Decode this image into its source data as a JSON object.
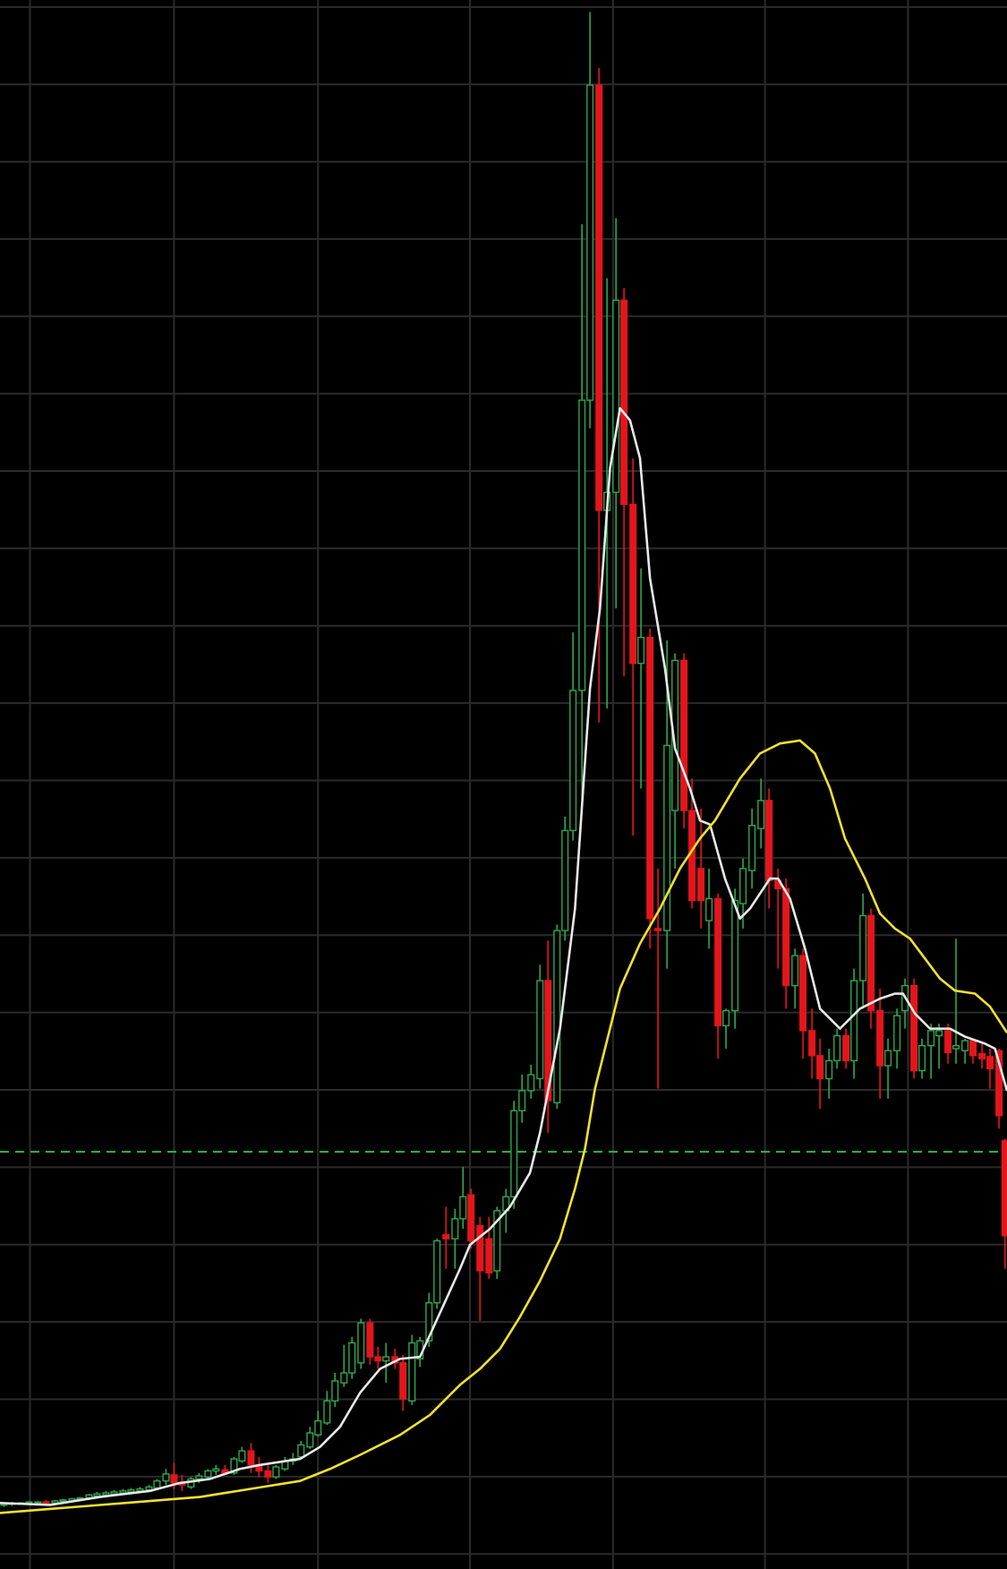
{
  "chart_data": {
    "type": "candlestick",
    "x": [
      4,
      12,
      21,
      29,
      38,
      46,
      55,
      63,
      72,
      80,
      89,
      97,
      106,
      114,
      123,
      131,
      140,
      149,
      157,
      166,
      174,
      182,
      191,
      199,
      208,
      216,
      225,
      234,
      242,
      251,
      259,
      268,
      276,
      285,
      293,
      301,
      310,
      318,
      327,
      335,
      344,
      352,
      361,
      370,
      378,
      386,
      395,
      403,
      412,
      420,
      429,
      437,
      446,
      455,
      463,
      471,
      480,
      489,
      497,
      506,
      514,
      522,
      531,
      540,
      548,
      557,
      565,
      573,
      582,
      590,
      599,
      607,
      616,
      624,
      633,
      641,
      650,
      658,
      667,
      675,
      684,
      692,
      701,
      709,
      718,
      726,
      735,
      743,
      752,
      761,
      769,
      778,
      786,
      795,
      803,
      812,
      820,
      829,
      837,
      846,
      854,
      863,
      871,
      880,
      888,
      897,
      905,
      914,
      922,
      931,
      939,
      948,
      956,
      965,
      973,
      982,
      990,
      999,
      1005
    ],
    "open": [
      64,
      65,
      65,
      66,
      66,
      67,
      66,
      68,
      68,
      70,
      71,
      73,
      74,
      75,
      76,
      77,
      78,
      79,
      81,
      88,
      94,
      86,
      82,
      90,
      92,
      98,
      99,
      96,
      108,
      118,
      104,
      98,
      92,
      100,
      108,
      112,
      122,
      134,
      146,
      168,
      186,
      196,
      206,
      246,
      212,
      208,
      212,
      206,
      168,
      210,
      228,
      266,
      334,
      330,
      350,
      374,
      343,
      330,
      298,
      358,
      372,
      458,
      478,
      490,
      588,
      466,
      638,
      738,
      878,
      1168,
      1483,
      1058,
      1076,
      1268,
      1064,
      905,
      931,
      640,
      638,
      758,
      908,
      758,
      700,
      648,
      670,
      543,
      558,
      665,
      698,
      740,
      768,
      688,
      680,
      583,
      613,
      538,
      513,
      490,
      508,
      533,
      508,
      588,
      653,
      558,
      503,
      518,
      558,
      583,
      498,
      523,
      533,
      538,
      520,
      518,
      528,
      515,
      512,
      518,
      428
    ],
    "high": [
      66,
      67,
      67,
      68,
      68,
      69,
      69,
      70,
      71,
      72,
      75,
      77,
      78,
      79,
      80,
      81,
      82,
      84,
      90,
      100,
      106,
      94,
      92,
      96,
      100,
      104,
      104,
      112,
      122,
      126,
      112,
      104,
      104,
      112,
      116,
      128,
      142,
      158,
      178,
      196,
      224,
      232,
      250,
      250,
      222,
      226,
      220,
      214,
      234,
      232,
      276,
      330,
      362,
      360,
      402,
      380,
      352,
      352,
      362,
      380,
      468,
      494,
      504,
      604,
      628,
      644,
      752,
      936,
      1344,
      1556,
      1500,
      1290,
      1350,
      1280,
      1110,
      1000,
      940,
      700,
      928,
      915,
      915,
      790,
      760,
      700,
      675,
      560,
      680,
      710,
      760,
      790,
      780,
      700,
      690,
      620,
      620,
      560,
      530,
      520,
      540,
      540,
      600,
      675,
      660,
      580,
      530,
      560,
      590,
      590,
      530,
      545,
      545,
      545,
      630,
      530,
      530,
      525,
      520,
      520,
      430
    ],
    "low": [
      62,
      63,
      64,
      64,
      65,
      65,
      65,
      66,
      67,
      68,
      69,
      72,
      72,
      73,
      74,
      75,
      76,
      77,
      79,
      84,
      80,
      78,
      80,
      86,
      90,
      94,
      95,
      94,
      106,
      96,
      92,
      86,
      90,
      98,
      104,
      110,
      120,
      132,
      144,
      162,
      182,
      190,
      200,
      204,
      200,
      186,
      200,
      158,
      164,
      202,
      222,
      260,
      300,
      300,
      340,
      320,
      248,
      290,
      290,
      336,
      360,
      446,
      470,
      480,
      436,
      460,
      628,
      728,
      760,
      1140,
      846,
      860,
      960,
      892,
      733,
      780,
      620,
      480,
      600,
      700,
      740,
      660,
      640,
      620,
      510,
      520,
      540,
      640,
      680,
      720,
      660,
      600,
      560,
      560,
      510,
      490,
      460,
      470,
      500,
      500,
      490,
      560,
      540,
      470,
      470,
      500,
      540,
      490,
      490,
      490,
      500,
      505,
      505,
      505,
      505,
      500,
      480,
      440,
      300
    ],
    "close": [
      65,
      66,
      66,
      67,
      67,
      66,
      68,
      69,
      70,
      71,
      74,
      75,
      76,
      77,
      78,
      79,
      80,
      82,
      88,
      95,
      86,
      84,
      90,
      93,
      98,
      100,
      96,
      110,
      118,
      104,
      98,
      92,
      102,
      108,
      110,
      124,
      136,
      148,
      168,
      188,
      196,
      226,
      246,
      212,
      208,
      212,
      206,
      170,
      226,
      228,
      266,
      328,
      330,
      350,
      372,
      328,
      298,
      296,
      358,
      372,
      458,
      478,
      494,
      588,
      468,
      638,
      738,
      878,
      1168,
      1483,
      1058,
      1076,
      1268,
      1064,
      905,
      931,
      650,
      638,
      823,
      908,
      758,
      668,
      668,
      670,
      543,
      558,
      668,
      700,
      743,
      768,
      688,
      680,
      583,
      613,
      538,
      513,
      490,
      508,
      533,
      508,
      588,
      653,
      558,
      503,
      518,
      553,
      583,
      498,
      523,
      538,
      538,
      516,
      523,
      528,
      513,
      510,
      500,
      453,
      333
    ],
    "up_color": "#2fa84f",
    "down_color": "#e3161c",
    "lines": [
      {
        "color": "#e8e8e8",
        "x": [
          0,
          50,
          100,
          150,
          180,
          210,
          240,
          260,
          300,
          320,
          340,
          360,
          380,
          400,
          420,
          440,
          460,
          470,
          490,
          510,
          530,
          540,
          560,
          575,
          590,
          600,
          610,
          620,
          630,
          640,
          650,
          665,
          675,
          690,
          700,
          710,
          725,
          740,
          750,
          770,
          778,
          790,
          805,
          820,
          840,
          860,
          880,
          895,
          903,
          915,
          930,
          950,
          965,
          985,
          995,
          1007
        ],
        "values": [
          66,
          64,
          72,
          78,
          86,
          90,
          100,
          104,
          110,
          122,
          142,
          176,
          200,
          210,
          212,
          256,
          300,
          324,
          340,
          362,
          396,
          436,
          540,
          660,
          880,
          960,
          1100,
          1160,
          1148,
          1110,
          990,
          900,
          820,
          780,
          748,
          744,
          690,
          650,
          660,
          690,
          690,
          670,
          620,
          560,
          540,
          560,
          570,
          575,
          575,
          555,
          540,
          540,
          532,
          525,
          520,
          478
        ]
      },
      {
        "color": "#f0e130",
        "x": [
          0,
          50,
          100,
          150,
          200,
          250,
          300,
          330,
          360,
          400,
          430,
          460,
          480,
          500,
          520,
          540,
          560,
          575,
          585,
          595,
          605,
          620,
          640,
          660,
          680,
          700,
          715,
          740,
          760,
          780,
          800,
          815,
          830,
          845,
          865,
          880,
          895,
          910,
          925,
          940,
          955,
          975,
          990,
          1007
        ],
        "values": [
          56,
          60,
          64,
          68,
          72,
          80,
          88,
          100,
          114,
          134,
          154,
          184,
          200,
          220,
          252,
          288,
          330,
          380,
          420,
          480,
          520,
          580,
          625,
          660,
          700,
          730,
          748,
          790,
          815,
          825,
          828,
          815,
          780,
          730,
          690,
          655,
          640,
          630,
          610,
          590,
          578,
          575,
          562,
          536
        ]
      }
    ],
    "reference_line": {
      "value": 417,
      "color": "#2db84d"
    },
    "xlim": [
      0,
      1007
    ],
    "ylim": [
      0,
      1568
    ],
    "xticks": [
      30,
      174,
      318,
      470,
      613,
      765,
      908
    ],
    "yticks": [
      1561,
      1483.7,
      1406.4,
      1329.1,
      1251.8,
      1174.5,
      1097.2,
      1019.9,
      942.6,
      865.3,
      788,
      710.7,
      633.4,
      556.1,
      478.8,
      401.5,
      324.2,
      246.9,
      169.6,
      92.3,
      15
    ],
    "grid": true
  }
}
